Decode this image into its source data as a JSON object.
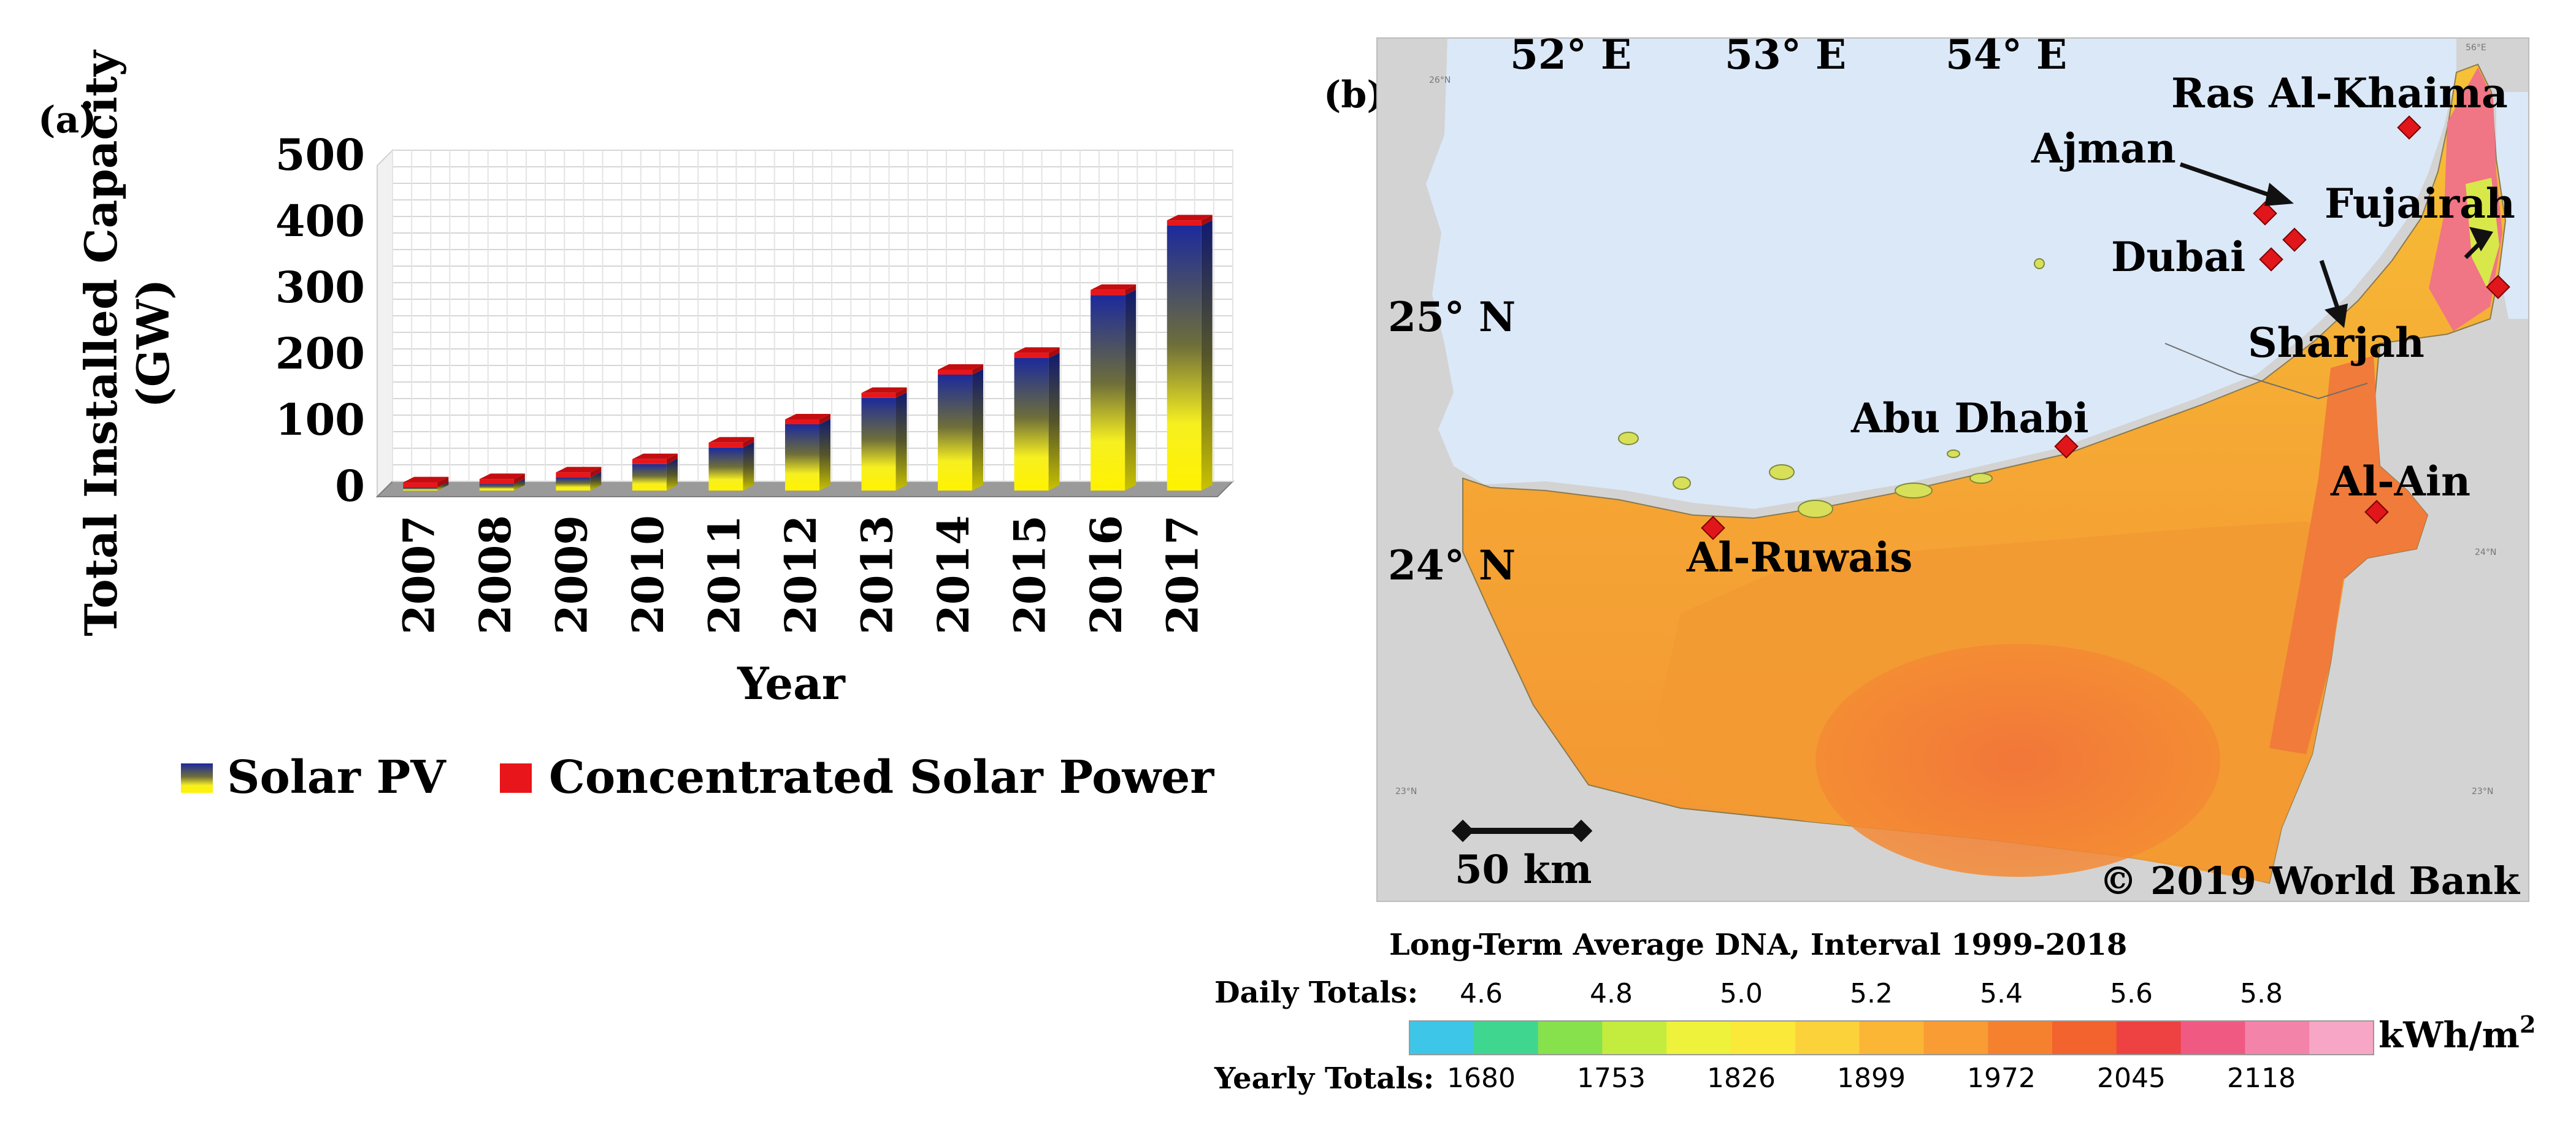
{
  "panel_a": {
    "label": "(a)",
    "legend": [
      {
        "label": "Solar PV",
        "swatch": "pv-gradient"
      },
      {
        "label": "Concentrated Solar Power",
        "swatch": "#e8161a"
      }
    ]
  },
  "panel_b": {
    "label": "(b)",
    "longitudes": [
      "52° E",
      "53° E",
      "54° E"
    ],
    "latitudes": [
      "25° N",
      "24° N"
    ],
    "cities": [
      {
        "name": "Ras Al-Khaima"
      },
      {
        "name": "Ajman"
      },
      {
        "name": "Fujairah"
      },
      {
        "name": "Dubai"
      },
      {
        "name": "Sharjah"
      },
      {
        "name": "Abu Dhabi"
      },
      {
        "name": "Al-Ain"
      },
      {
        "name": "Al-Ruwais"
      }
    ],
    "scale_bar": "50 km",
    "copyright": "© 2019 World Bank",
    "colorbar": {
      "title": "Long-Term Average DNA, Interval 1999-2018",
      "daily_label": "Daily Totals:",
      "daily_ticks": [
        "4.6",
        "4.8",
        "5.0",
        "5.2",
        "5.4",
        "5.6",
        "5.8"
      ],
      "yearly_label": "Yearly Totals:",
      "yearly_ticks": [
        "1680",
        "1753",
        "1826",
        "1899",
        "1972",
        "2045",
        "2118"
      ],
      "unit": "kWh/m",
      "unit_sup": "2",
      "colors": [
        "#3ec6e8",
        "#3fd68f",
        "#86e14c",
        "#c4ec3f",
        "#eef23a",
        "#fbe93a",
        "#fcd23a",
        "#fbb636",
        "#f89c33",
        "#f5812f",
        "#f2632d",
        "#ee4141",
        "#f05a82",
        "#f483aa",
        "#f7a7c5"
      ]
    }
  },
  "chart_data": {
    "type": "bar",
    "title": "",
    "xlabel": "Year",
    "ylabel": "Total Installed Capacity (GW)",
    "ylim": [
      0,
      500
    ],
    "yticks": [
      "0",
      "100",
      "200",
      "300",
      "400",
      "500"
    ],
    "grid": true,
    "legend_position": "bottom",
    "categories": [
      "2007",
      "2008",
      "2009",
      "2010",
      "2011",
      "2012",
      "2013",
      "2014",
      "2015",
      "2016",
      "2017"
    ],
    "series": [
      {
        "name": "Solar PV",
        "values": [
          5,
          10,
          20,
          40,
          65,
          100,
          140,
          175,
          200,
          295,
          400
        ]
      },
      {
        "name": "Concentrated Solar Power",
        "values": [
          0.5,
          0.5,
          1,
          1,
          2,
          3,
          4,
          4.5,
          5,
          5,
          5
        ]
      }
    ]
  }
}
